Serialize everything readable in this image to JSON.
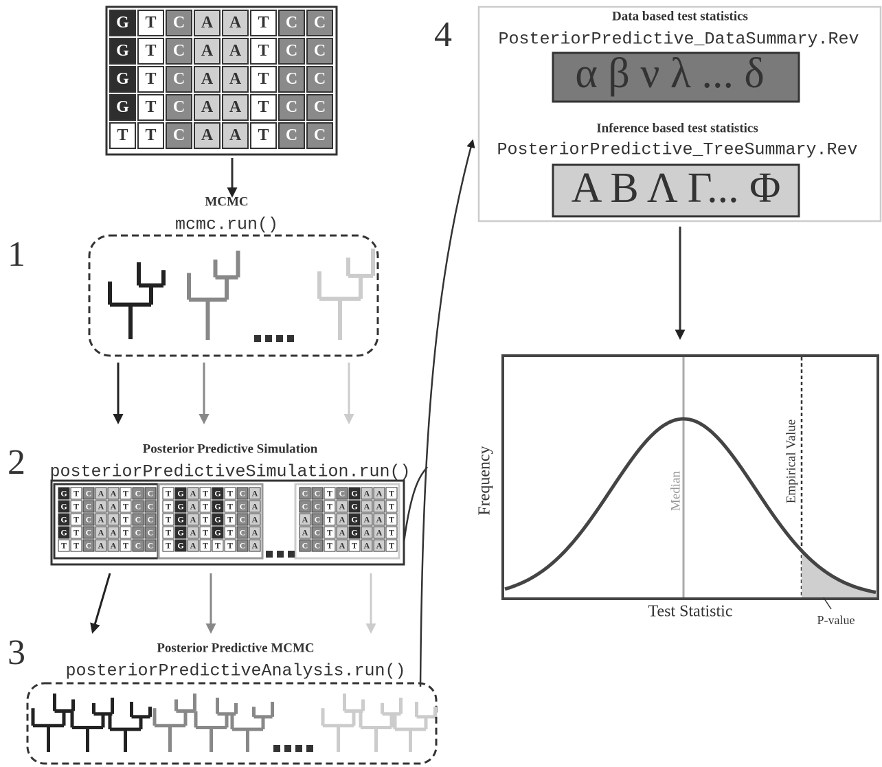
{
  "steps": [
    "1",
    "2",
    "3",
    "4"
  ],
  "alignment": {
    "rows": [
      "GTCAATCC",
      "GTCAATCC",
      "GTCAATCC",
      "GTCAATCC",
      "TTCAATCC"
    ]
  },
  "mcmc": {
    "title": "MCMC",
    "code": "mcmc.run()"
  },
  "simulation": {
    "title": "Posterior Predictive Simulation",
    "code": "posteriorPredictiveSimulation.run()",
    "alignments": [
      {
        "rows": [
          "GTCAATCC",
          "GTCAATCC",
          "GTCAATCC",
          "GTCAATCC",
          "TTCAATCC"
        ]
      },
      {
        "rows": [
          "TGATGTCA",
          "TGATGTCA",
          "TGATGTCA",
          "TGATGTCA",
          "TGATTTCA"
        ]
      },
      {
        "rows": [
          "CCTCGAAT",
          "CCTAGAAT",
          "ACTAGAAT",
          "ACTAGAAT",
          "CCTATAAT"
        ]
      }
    ]
  },
  "analysis": {
    "title": "Posterior Predictive MCMC",
    "code": "posteriorPredictiveAnalysis.run()"
  },
  "statistics": {
    "data_based": {
      "title": "Data based test statistics",
      "code": "PosteriorPredictive_DataSummary.Rev",
      "symbols": "α β ν λ ... δ"
    },
    "inference_based": {
      "title": "Inference based test statistics",
      "code": "PosteriorPredictive_TreeSummary.Rev",
      "symbols": "Α Β Λ Γ... Φ"
    }
  },
  "plot": {
    "y_label": "Frequency",
    "x_label": "Test Statistic",
    "median": "Median",
    "empirical": "Empirical Value",
    "p_value": "P-value"
  }
}
